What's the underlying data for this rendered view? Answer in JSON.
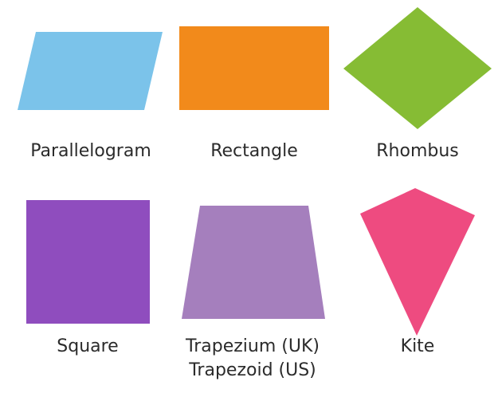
{
  "shapes": [
    {
      "id": "parallelogram",
      "label": "Parallelogram",
      "color": "#7BC3EA"
    },
    {
      "id": "rectangle",
      "label": "Rectangle",
      "color": "#F28A1B"
    },
    {
      "id": "rhombus",
      "label": "Rhombus",
      "color": "#86BC34"
    },
    {
      "id": "square",
      "label": "Square",
      "color": "#8F4DBE"
    },
    {
      "id": "trapezium",
      "label_line1": "Trapezium (UK)",
      "label_line2": "Trapezoid (US)",
      "color": "#A57FBD"
    },
    {
      "id": "kite",
      "label": "Kite",
      "color": "#EE4B80"
    }
  ]
}
